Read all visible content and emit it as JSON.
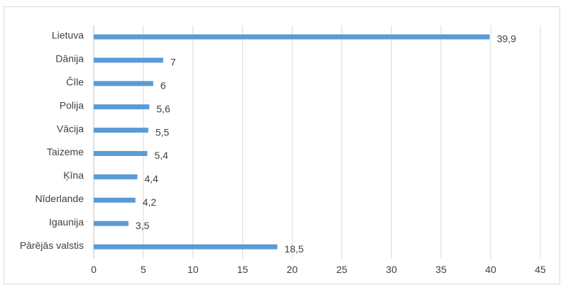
{
  "chart_data": {
    "type": "bar",
    "orientation": "horizontal",
    "categories": [
      "Lietuva",
      "Dānija",
      "Čīle",
      "Polija",
      "Vācija",
      "Taizeme",
      "Ķīna",
      "Nīderlande",
      "Igaunija",
      "Pārējās valstis"
    ],
    "values": [
      39.9,
      7,
      6,
      5.6,
      5.5,
      5.4,
      4.4,
      4.2,
      3.5,
      18.5
    ],
    "value_labels": [
      "39,9",
      "7",
      "6",
      "5,6",
      "5,5",
      "5,4",
      "4,4",
      "4,2",
      "3,5",
      "18,5"
    ],
    "x_ticks": [
      "0",
      "5",
      "10",
      "15",
      "20",
      "25",
      "30",
      "35",
      "40",
      "45"
    ],
    "xlim": [
      0,
      45
    ],
    "grid": "vertical",
    "legend": "none",
    "title": "",
    "xlabel": "",
    "ylabel": "",
    "colors": {
      "bar": "#5b9bd5",
      "grid": "#d9d9d9",
      "text": "#404040"
    }
  }
}
